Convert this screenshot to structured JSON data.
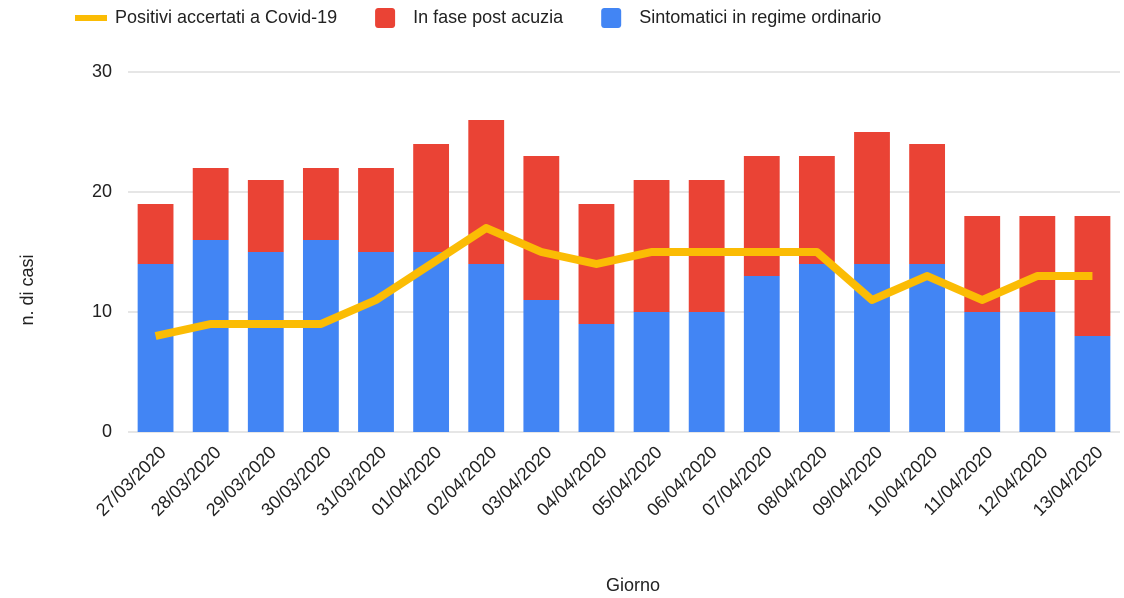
{
  "chart_data": {
    "type": "bar",
    "stacked": true,
    "x_label": "Giorno",
    "y_label": "n. di casi",
    "categories": [
      "27/03/2020",
      "28/03/2020",
      "29/03/2020",
      "30/03/2020",
      "31/03/2020",
      "01/04/2020",
      "02/04/2020",
      "03/04/2020",
      "04/04/2020",
      "05/04/2020",
      "06/04/2020",
      "07/04/2020",
      "08/04/2020",
      "09/04/2020",
      "10/04/2020",
      "11/04/2020",
      "12/04/2020",
      "13/04/2020"
    ],
    "series": [
      {
        "name": "Positivi accertati a Covid-19",
        "type": "line",
        "color": "#fbbc04",
        "values": [
          8,
          9,
          9,
          9,
          11,
          14,
          17,
          15,
          14,
          15,
          15,
          15,
          15,
          11,
          13,
          11,
          13,
          13
        ]
      },
      {
        "name": "In fase post acuzia",
        "type": "bar",
        "color": "#ea4335",
        "values": [
          5,
          6,
          6,
          6,
          7,
          9,
          12,
          12,
          10,
          11,
          11,
          10,
          9,
          11,
          10,
          8,
          8,
          10
        ]
      },
      {
        "name": "Sintomatici in regime ordinario",
        "type": "bar",
        "color": "#4285f4",
        "values": [
          14,
          16,
          15,
          16,
          15,
          15,
          14,
          11,
          9,
          10,
          10,
          13,
          14,
          14,
          14,
          10,
          10,
          8
        ]
      }
    ],
    "ylim": [
      0,
      30
    ],
    "yticks": [
      0,
      10,
      20,
      30
    ],
    "grid": true,
    "legend": "top"
  }
}
